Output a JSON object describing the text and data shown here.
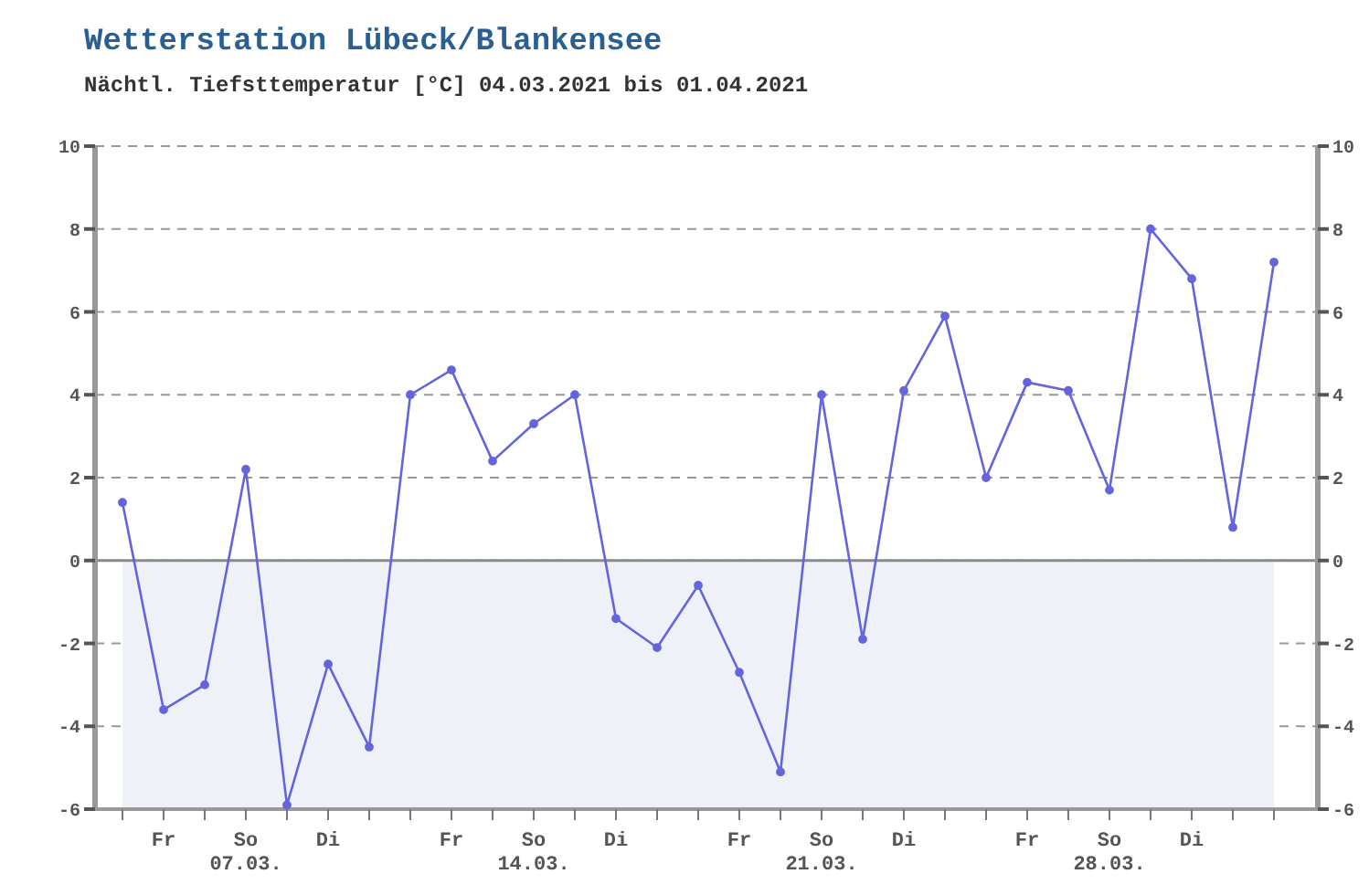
{
  "chart_data": {
    "type": "line",
    "title": "Wetterstation Lübeck/Blankensee",
    "subtitle": "Nächtl. Tiefsttemperatur [°C] 04.03.2021 bis 01.04.2021",
    "categories": [
      null,
      "Fr",
      null,
      "So\n07.03.",
      null,
      "Di",
      null,
      null,
      "Fr",
      null,
      "So\n14.03.",
      null,
      "Di",
      null,
      null,
      "Fr",
      null,
      "So\n21.03.",
      null,
      "Di",
      null,
      null,
      "Fr",
      null,
      "So\n28.03.",
      null,
      "Di",
      null,
      null
    ],
    "series": [
      {
        "color": "#6464dc",
        "values": [
          1.4,
          -3.6,
          -3.0,
          2.2,
          -5.9,
          -2.5,
          -4.5,
          4.0,
          4.6,
          2.4,
          3.3,
          4.0,
          -1.4,
          -2.1,
          -0.6,
          -2.7,
          -5.1,
          4.0,
          -1.9,
          4.1,
          5.9,
          2.0,
          4.3,
          4.1,
          1.7,
          8.0,
          6.8,
          0.8,
          7.2
        ]
      }
    ],
    "ylim": [
      -6,
      10
    ],
    "yticks": [
      -6,
      -4,
      -2,
      0,
      2,
      4,
      6,
      8,
      10
    ],
    "y2lim": [
      -6,
      10
    ],
    "y2ticks": [
      -6,
      -4,
      -2,
      0,
      2,
      4,
      6,
      8,
      10
    ],
    "grid": "y",
    "marker": "circle",
    "line_style": "solid",
    "legend": false,
    "bands": [
      {
        "axis": "y",
        "from": -6,
        "to": 0,
        "color": "#eef2f8"
      }
    ],
    "ref_lines": [
      {
        "axis": "y",
        "value": 0,
        "color": "#8a8a8a"
      }
    ]
  }
}
